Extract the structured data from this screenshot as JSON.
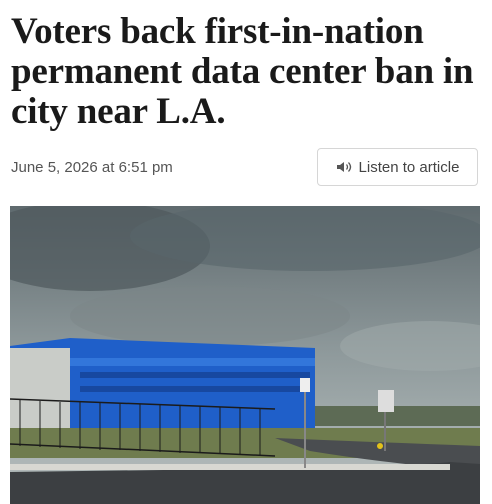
{
  "article": {
    "headline": "Voters back first-in-nation permanent data center ban in city near L.A.",
    "date": "June 5, 2026 at 6:51 pm",
    "listen_button": "Listen to article"
  }
}
